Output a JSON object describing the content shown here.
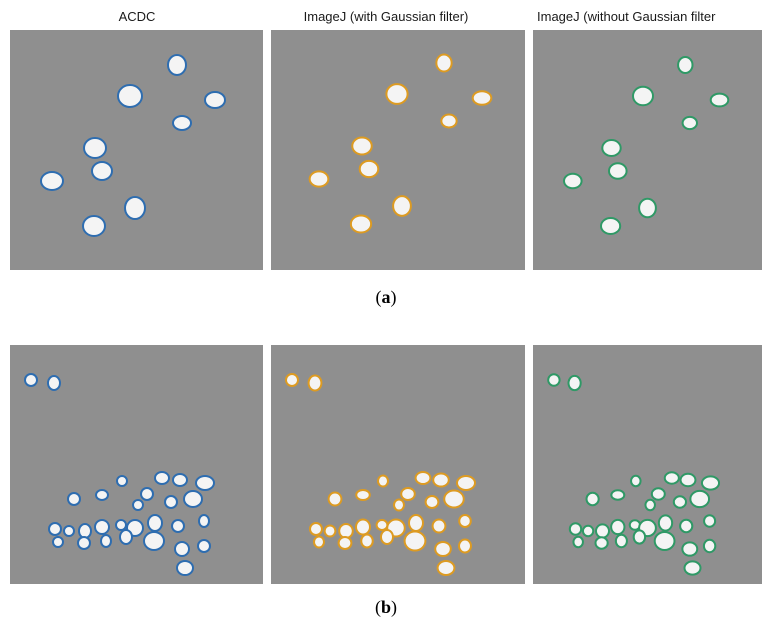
{
  "columns": [
    {
      "title": "ACDC",
      "color": "#2e6db0"
    },
    {
      "title": "ImageJ (with Gaussian filter)",
      "color": "#dd9b22"
    },
    {
      "title": "ImageJ (without Gaussian filter",
      "color": "#2f9966"
    }
  ],
  "captions": {
    "a_open": "(",
    "a_letter": "a",
    "a_close": ")",
    "b_open": "(",
    "b_letter": "b",
    "b_close": ")"
  },
  "background_color": "#8f8f8f"
}
